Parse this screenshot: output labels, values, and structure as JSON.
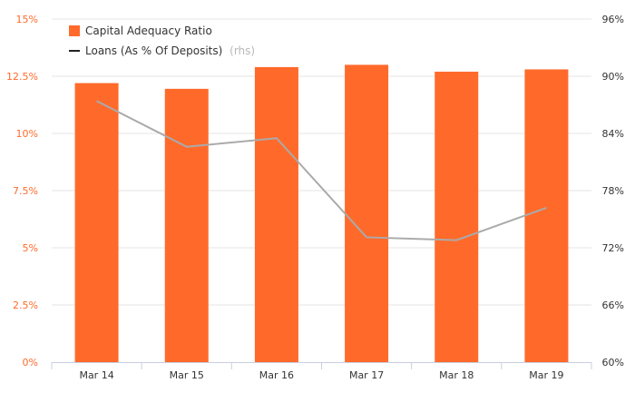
{
  "chart_data": {
    "type": "bar",
    "categories": [
      "Mar 14",
      "Mar 15",
      "Mar 16",
      "Mar 17",
      "Mar 18",
      "Mar 19"
    ],
    "series": [
      {
        "name": "Capital Adequacy Ratio",
        "kind": "bar",
        "axis": "left",
        "color": "#ff6a2b",
        "values": [
          12.2,
          11.95,
          12.9,
          13.0,
          12.7,
          12.8
        ]
      },
      {
        "name": "Loans (As % Of Deposits)",
        "axis_note": "(rhs)",
        "kind": "line",
        "axis": "right",
        "color": "#aaaaaa",
        "values": [
          87.4,
          82.6,
          83.5,
          73.1,
          72.8,
          76.2
        ]
      }
    ],
    "y_left": {
      "lim": [
        0,
        15
      ],
      "ticks": [
        0,
        2.5,
        5,
        7.5,
        10,
        12.5,
        15
      ],
      "tick_labels": [
        "0%",
        "2.5%",
        "5%",
        "7.5%",
        "10%",
        "12.5%",
        "15%"
      ]
    },
    "y_right": {
      "lim": [
        60,
        96
      ],
      "ticks": [
        60,
        66,
        72,
        78,
        84,
        90,
        96
      ],
      "tick_labels": [
        "60%",
        "66%",
        "72%",
        "78%",
        "84%",
        "90%",
        "96%"
      ]
    },
    "grid": "horizontal",
    "legend_position": "top-left"
  }
}
